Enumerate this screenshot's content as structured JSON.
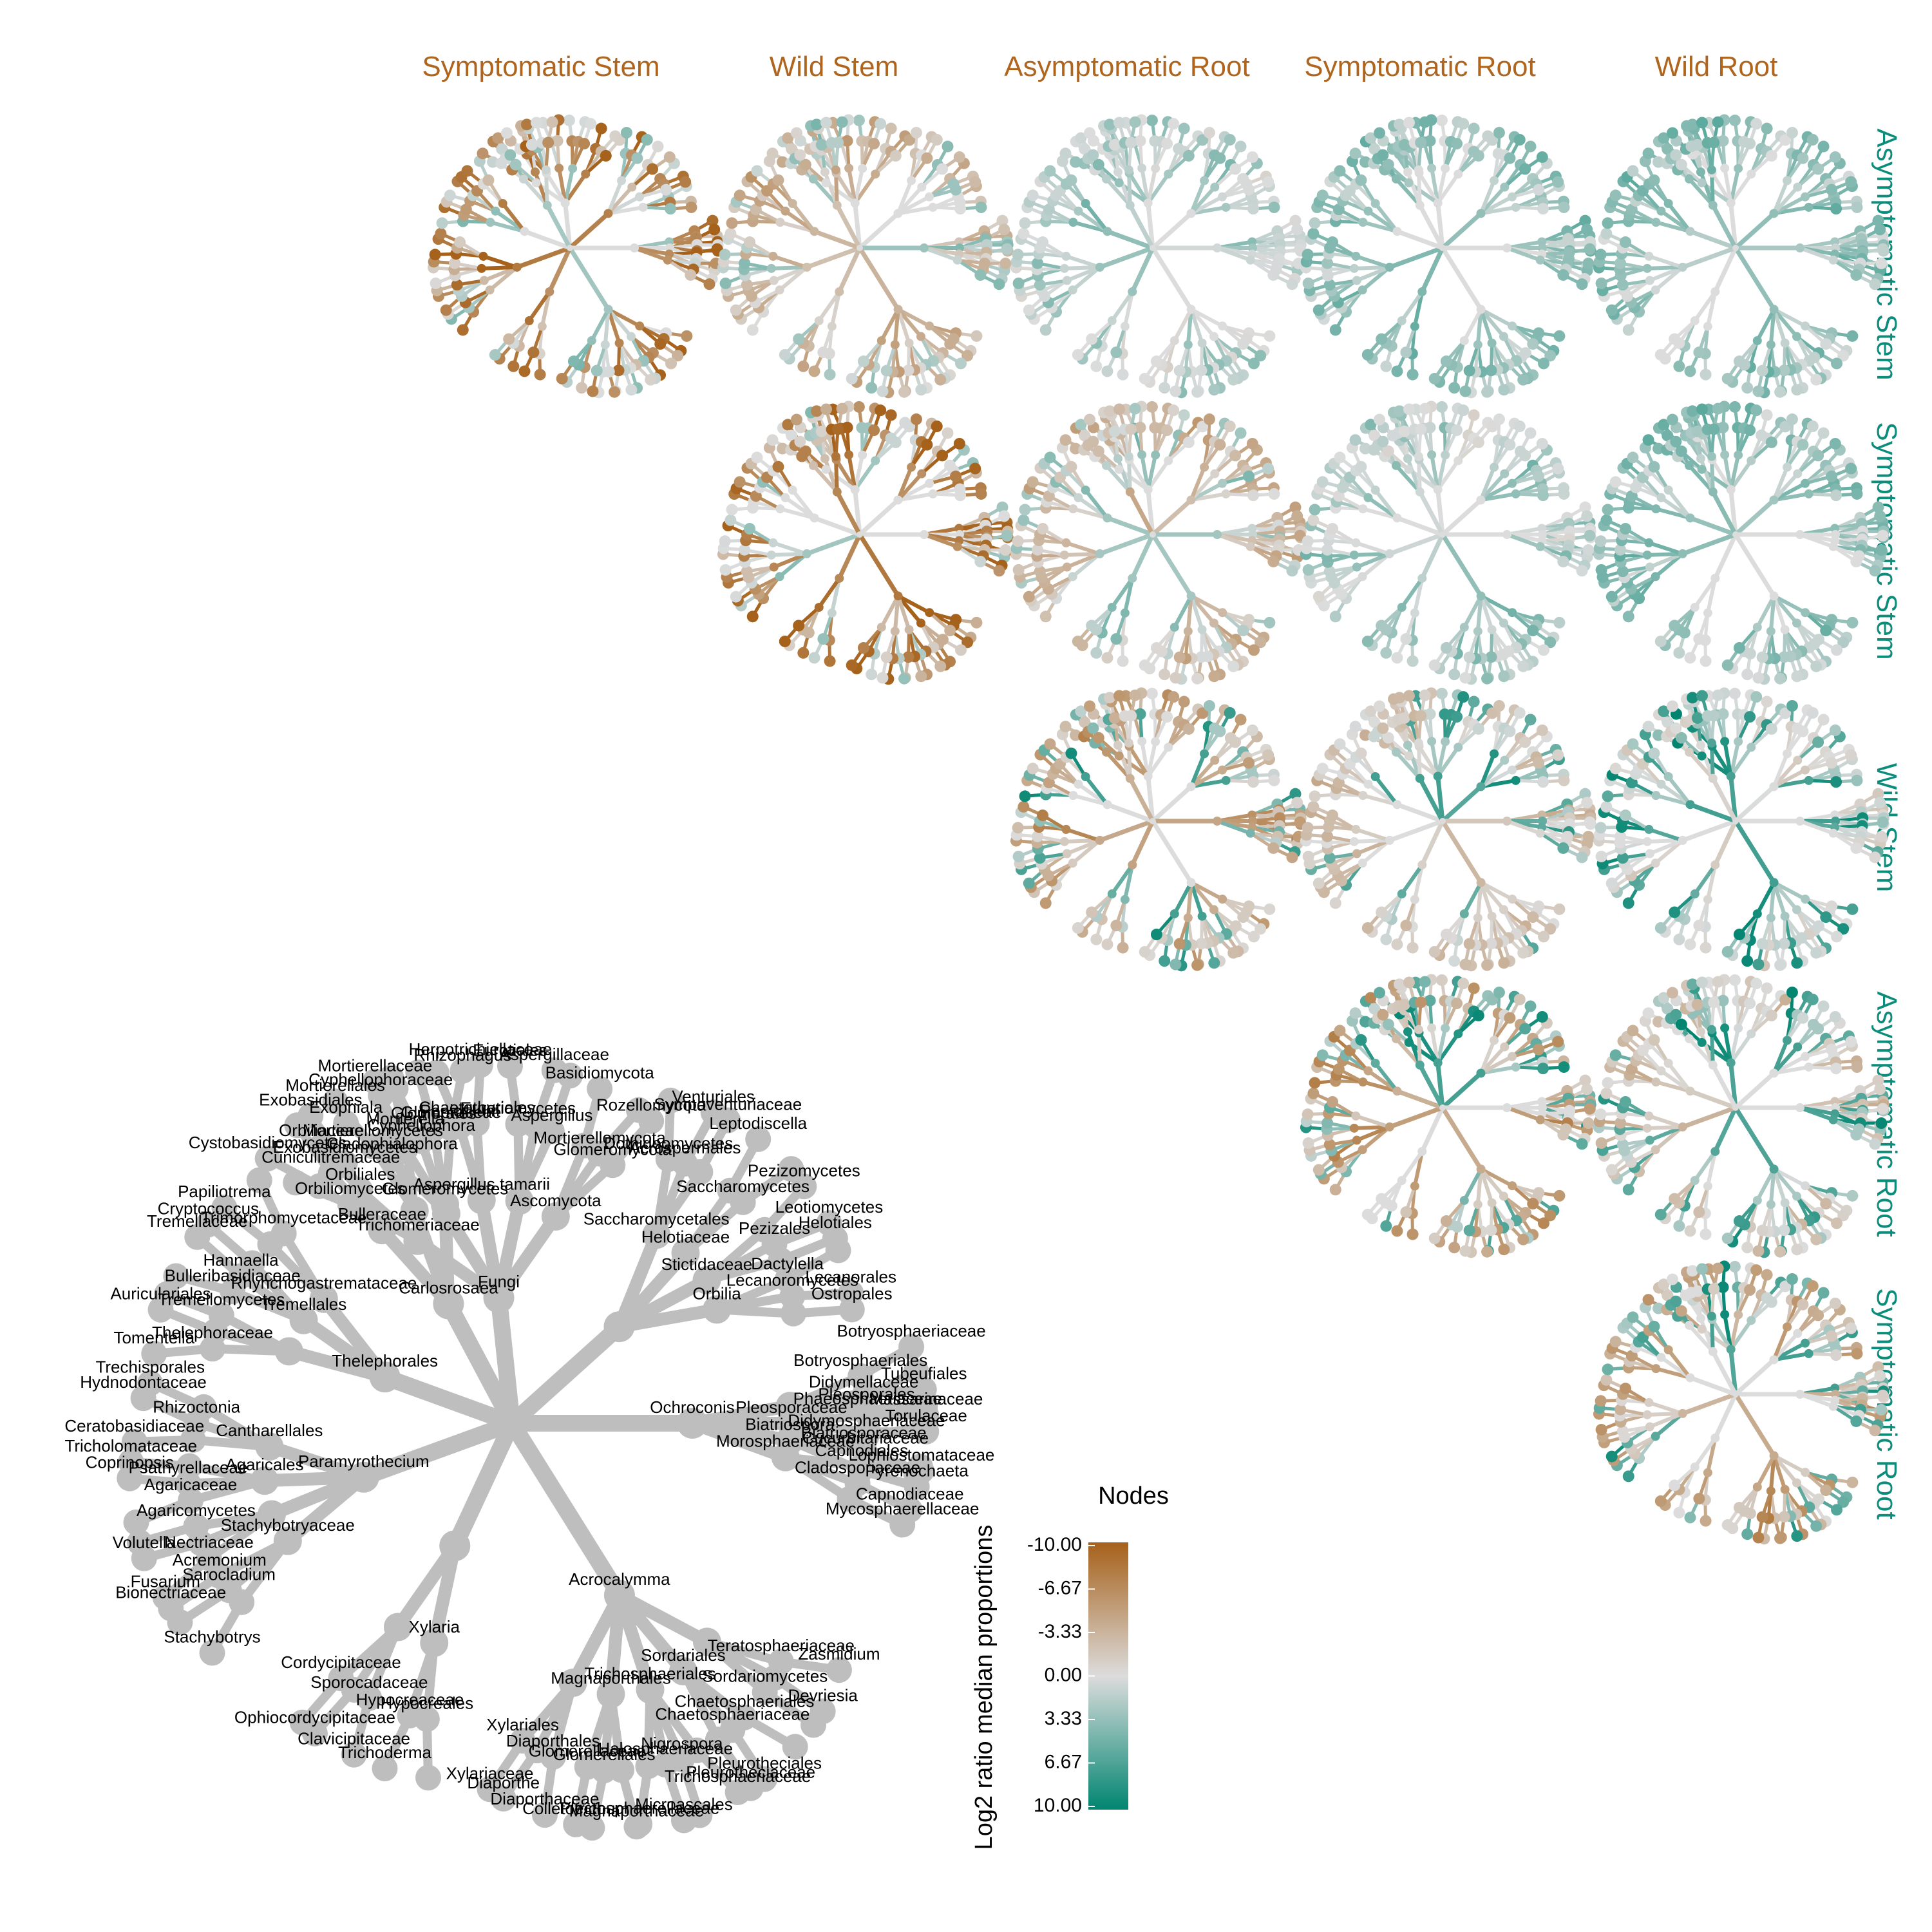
{
  "chart_data": {
    "type": "heat_tree_matrix",
    "column_labels": [
      "Symptomatic Stem",
      "Wild Stem",
      "Asymptomatic Root",
      "Symptomatic Root",
      "Wild Root"
    ],
    "row_labels": [
      "Asymptomatic Stem",
      "Symptomatic Stem",
      "Wild Stem",
      "Asymptomatic Root",
      "Symptomatic Root"
    ],
    "legend": {
      "title": "Nodes",
      "axis_label": "Log2 ratio median proportions",
      "ticks": [
        "-10.00",
        "-6.67",
        "-3.33",
        "0.00",
        "3.33",
        "6.67",
        "10.00"
      ],
      "range": [
        -10,
        10
      ],
      "colors": {
        "low": "#A6611A",
        "mid": "#DCDCDC",
        "high": "#018571"
      }
    },
    "key_tree": {
      "node_color": "#BEBEBE",
      "labels": [
        "Fungi",
        "Ascomycota",
        "Basidiomycota",
        "Mortierellomycota",
        "Glomeromycota",
        "Rozellomycota",
        "Eurotiomycetes",
        "Eurotiales",
        "Aspergillaceae",
        "Aspergillus",
        "Aspergillus tamarii",
        "Penicillium",
        "Chaetothyriales",
        "Herpotrichiellaceae",
        "Cladophialophora",
        "Exophiala",
        "Cyphellophoraceae",
        "Cyphellophora",
        "Trichomeriaceae",
        "Orbiliomycetes",
        "Orbiliales",
        "Orbiliaceae",
        "Orbilia",
        "Dactylella",
        "Lecanoromycetes",
        "Lecanorales",
        "Ostropales",
        "Stictidaceae",
        "Pezizomycetes",
        "Pezizales",
        "Leotiomycetes",
        "Helotiales",
        "Helotiaceae",
        "Leptodiscella",
        "Saccharomycetes",
        "Saccharomycetales",
        "Dothideomycetes",
        "Acrospermales",
        "Venturiales",
        "Sympoventuriaceae",
        "Ochroconis",
        "Botryosphaeriales",
        "Botryosphaeriaceae",
        "Tubeufiales",
        "Pleosporales",
        "Pleosporaceae",
        "Didymellaceae",
        "Phaeosphaeriaceae",
        "Massarinaceae",
        "Torulaceae",
        "Biatriosporaceae",
        "Biatriospora",
        "Didymosphaeriaceae",
        "Cucurbitariaceae",
        "Lophiostomataceae",
        "Pyrenochaeta",
        "Morosphaeriaceae",
        "Capnodiales",
        "Cladosporiaceae",
        "Capnodiaceae",
        "Mycosphaerellaceae",
        "Acrocalymma",
        "Teratosphaeriaceae",
        "Zasmidium",
        "Devriesia",
        "Sordariomycetes",
        "Sordariales",
        "Chaetosphaeriales",
        "Chaetosphaeriaceae",
        "Pleurotheciales",
        "Pleurotheciaceae",
        "Trichosphaeriales",
        "Trichosphaeriaceae",
        "Nigrospora",
        "Halosphaeriaceae",
        "Microascales",
        "Plectosphaerellaceae",
        "Magnaporthales",
        "Magnaporthaceae",
        "Glomerellales",
        "Glomerellaceae",
        "Colletotrichum",
        "Diaporthales",
        "Diaporthaceae",
        "Diaporthe",
        "Xylariales",
        "Xylariaceae",
        "Xylaria",
        "Hypocreales",
        "Hypocreaceae",
        "Trichoderma",
        "Sporocadaceae",
        "Clavicipitaceae",
        "Ophiocordycipitaceae",
        "Cordycipitaceae",
        "Paramyrothecium",
        "Stachybotryaceae",
        "Stachybotrys",
        "Sarocladium",
        "Acremonium",
        "Bionectriaceae",
        "Nectriaceae",
        "Fusarium",
        "Volutella",
        "Agaricomycetes",
        "Agaricales",
        "Agaricaceae",
        "Psathyrellaceae",
        "Coprinopsis",
        "Tricholomataceae",
        "Cantharellales",
        "Ceratobasidiaceae",
        "Rhizoctonia",
        "Hydnodontaceae",
        "Trechisporales",
        "Thelephorales",
        "Thelephoraceae",
        "Tomentella",
        "Auriculariales",
        "Tremellomycetes",
        "Tremellales",
        "Bulleribasidiaceae",
        "Hannaella",
        "Tremellaceae",
        "Cryptococcus",
        "Rhynchogastremataceae",
        "Papiliotrema",
        "Trimorphomycetaceae",
        "Carlosrosaea",
        "Bulleraceae",
        "Cystobasidiomycetes",
        "Cuniculitremaceae",
        "Exobasidiomycetes",
        "Exobasidiales",
        "Mortierellomycetes",
        "Mortierellales",
        "Mortierellaceae",
        "Mortierella",
        "Glomeromycetes",
        "Glomerales",
        "Glomeraceae",
        "Rhizophagus"
      ]
    }
  }
}
